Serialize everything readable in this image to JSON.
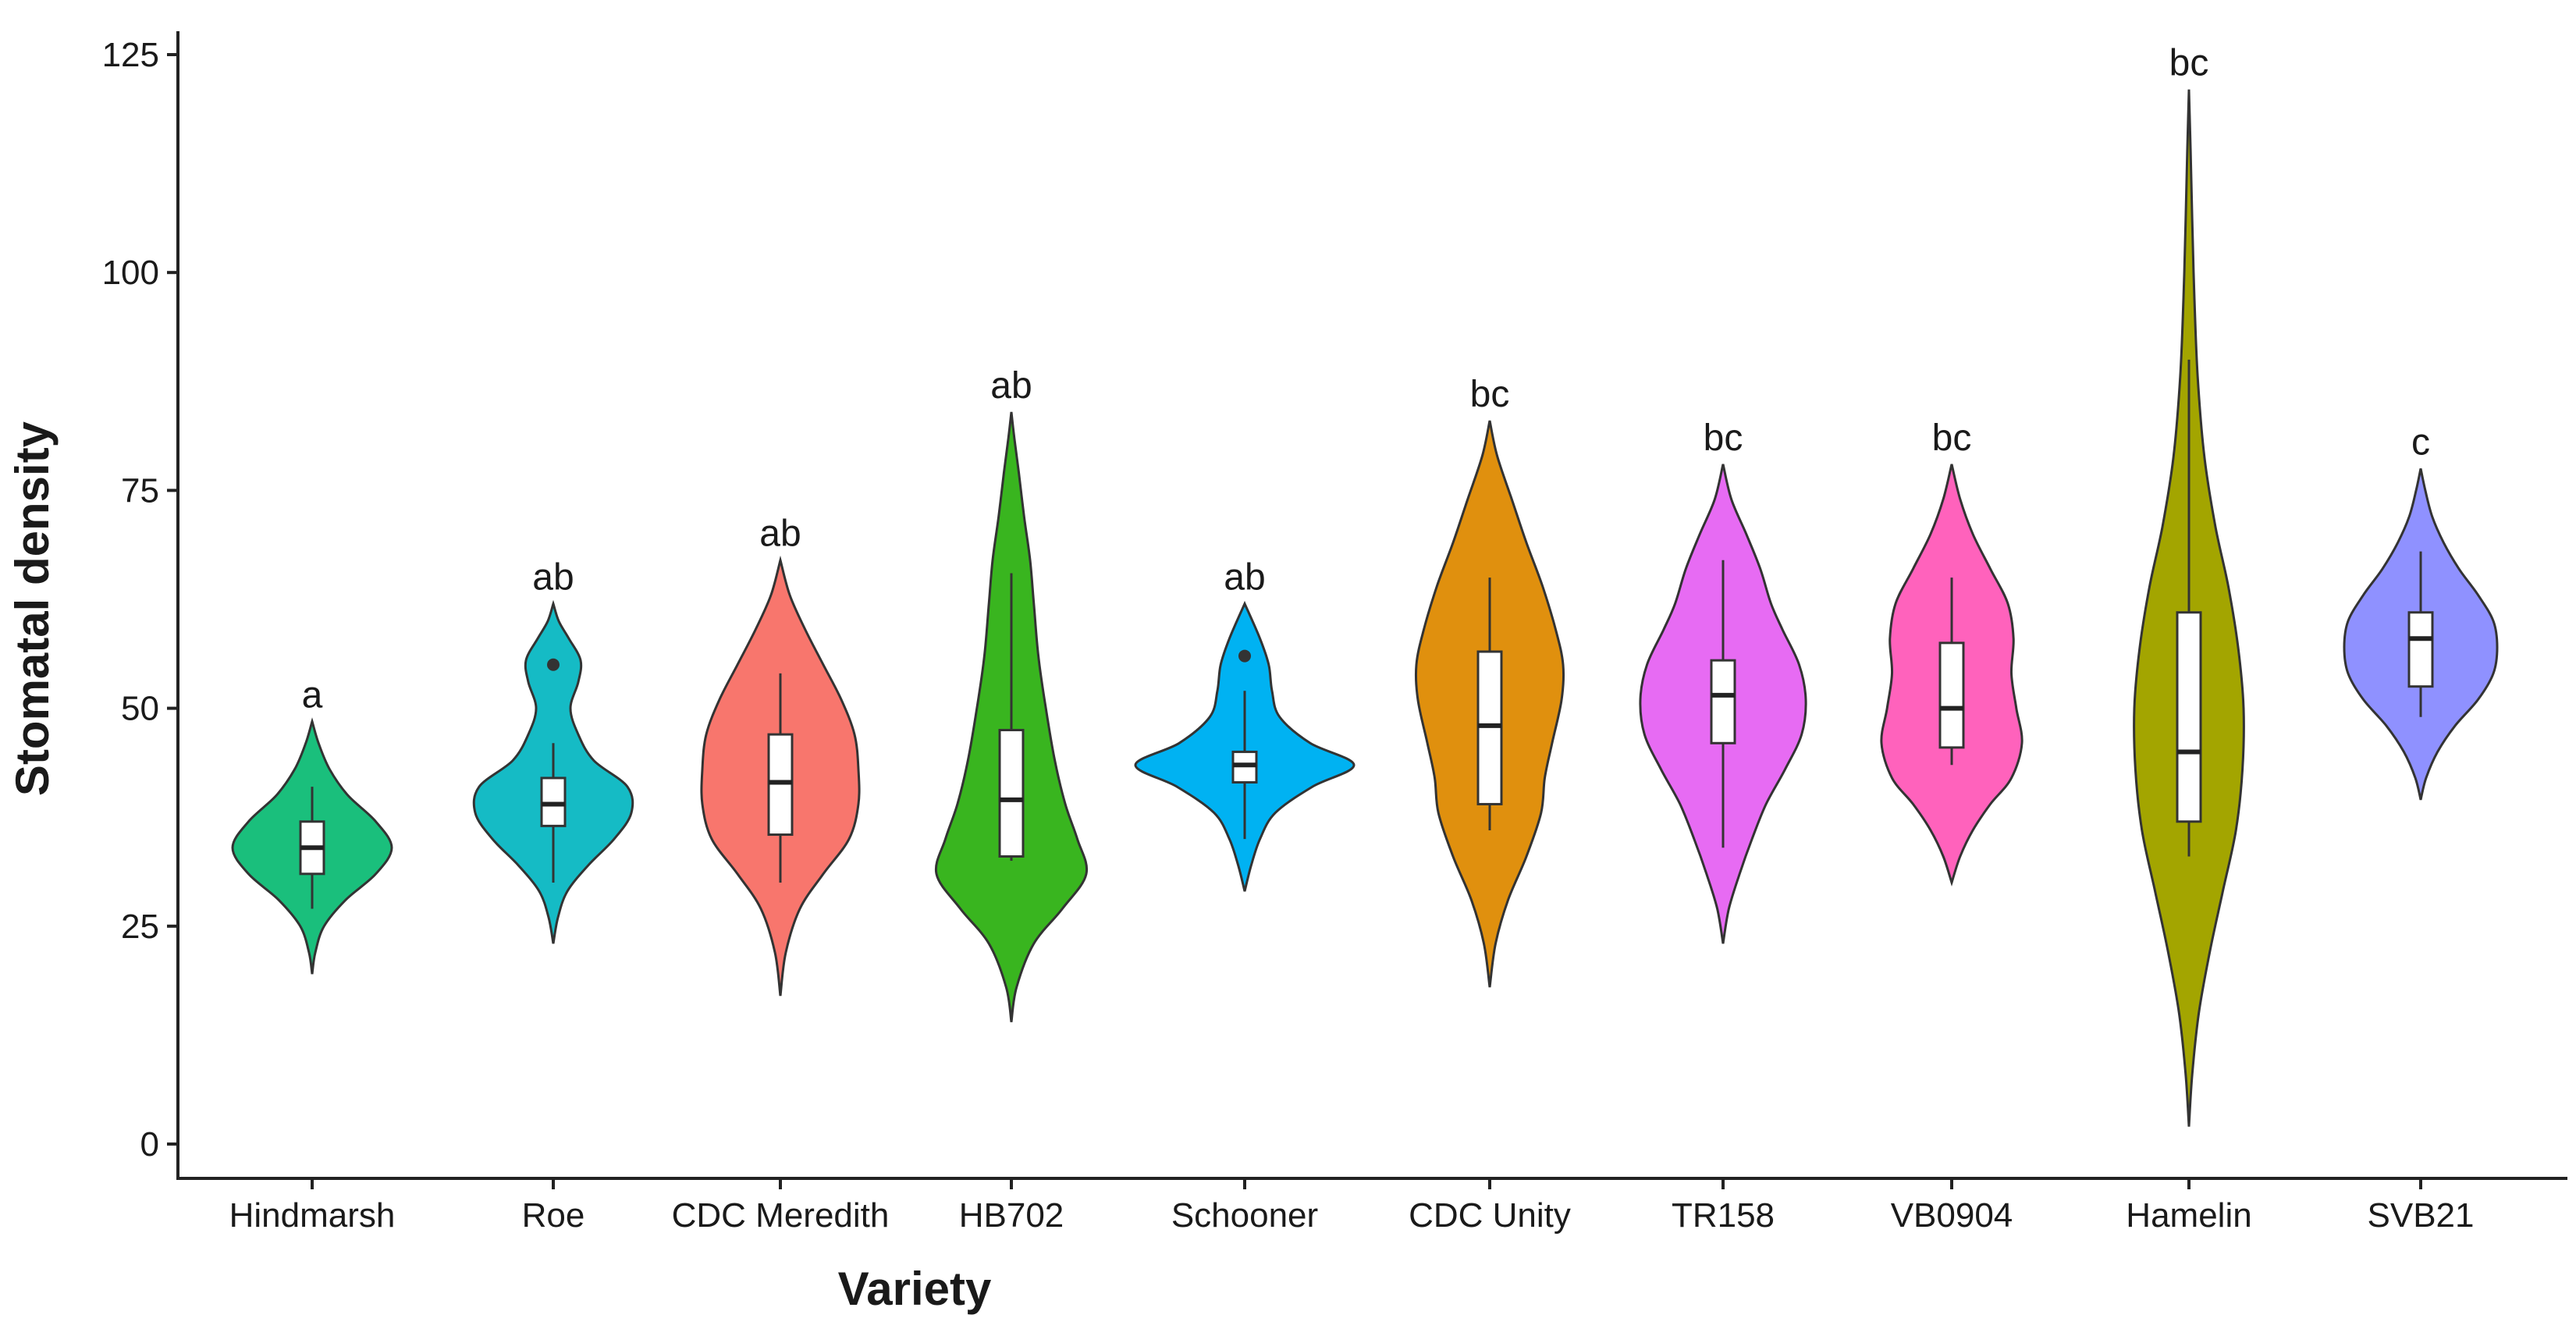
{
  "chart_data": {
    "type": "violin",
    "xlabel": "Variety",
    "ylabel": "Stomatal density",
    "ylim": [
      -3,
      126
    ],
    "yticks": [
      0,
      25,
      50,
      75,
      100,
      125
    ],
    "grid": false,
    "legend": "none",
    "categories": [
      "Hindmarsh",
      "Roe",
      "CDC Meredith",
      "HB702",
      "Schooner",
      "CDC Unity",
      "TR158",
      "VB0904",
      "Hamelin",
      "SVB21"
    ],
    "series": [
      {
        "name": "Hindmarsh",
        "color": "#1ABF7C",
        "significance": "a",
        "box": {
          "min": 27,
          "q1": 31,
          "median": 34,
          "q3": 37,
          "max": 41
        },
        "outliers": [],
        "density": [
          [
            19.5,
            0
          ],
          [
            22,
            0.04
          ],
          [
            25,
            0.15
          ],
          [
            28,
            0.42
          ],
          [
            31,
            0.8
          ],
          [
            34,
            1
          ],
          [
            37,
            0.8
          ],
          [
            40,
            0.45
          ],
          [
            43,
            0.22
          ],
          [
            46,
            0.08
          ],
          [
            48.5,
            0
          ]
        ]
      },
      {
        "name": "Roe",
        "color": "#15BBC5",
        "significance": "ab",
        "box": {
          "min": 30,
          "q1": 36.5,
          "median": 39,
          "q3": 42,
          "max": 46
        },
        "outliers": [
          55
        ],
        "density": [
          [
            23,
            0
          ],
          [
            26,
            0.06
          ],
          [
            29,
            0.18
          ],
          [
            32,
            0.45
          ],
          [
            35,
            0.78
          ],
          [
            38,
            1
          ],
          [
            41,
            0.95
          ],
          [
            44,
            0.52
          ],
          [
            47,
            0.32
          ],
          [
            50,
            0.22
          ],
          [
            53,
            0.32
          ],
          [
            55.5,
            0.35
          ],
          [
            58,
            0.2
          ],
          [
            60,
            0.07
          ],
          [
            62,
            0
          ]
        ]
      },
      {
        "name": "CDC Meredith",
        "color": "#F8766D",
        "significance": "ab",
        "box": {
          "min": 30,
          "q1": 35.5,
          "median": 41.5,
          "q3": 47,
          "max": 54
        },
        "outliers": [],
        "density": [
          [
            17,
            0
          ],
          [
            22,
            0.07
          ],
          [
            27,
            0.25
          ],
          [
            31,
            0.55
          ],
          [
            35,
            0.88
          ],
          [
            39,
            1
          ],
          [
            43,
            1
          ],
          [
            47,
            0.95
          ],
          [
            51,
            0.78
          ],
          [
            55,
            0.55
          ],
          [
            59,
            0.32
          ],
          [
            63,
            0.12
          ],
          [
            67,
            0
          ]
        ]
      },
      {
        "name": "HB702",
        "color": "#39B51F",
        "significance": "ab",
        "box": {
          "min": 32.5,
          "q1": 33,
          "median": 39.5,
          "q3": 47.5,
          "max": 65.5
        },
        "outliers": [],
        "density": [
          [
            14,
            0
          ],
          [
            18,
            0.07
          ],
          [
            23,
            0.3
          ],
          [
            27,
            0.68
          ],
          [
            31,
            1
          ],
          [
            35,
            0.88
          ],
          [
            39,
            0.72
          ],
          [
            44,
            0.58
          ],
          [
            50,
            0.46
          ],
          [
            56,
            0.36
          ],
          [
            62,
            0.3
          ],
          [
            67,
            0.25
          ],
          [
            72,
            0.17
          ],
          [
            77,
            0.1
          ],
          [
            81,
            0.04
          ],
          [
            84,
            0
          ]
        ]
      },
      {
        "name": "Schooner",
        "color": "#00B2F2",
        "significance": "ab",
        "box": {
          "min": 35,
          "q1": 41.5,
          "median": 43.5,
          "q3": 45,
          "max": 52
        },
        "outliers": [
          56
        ],
        "density": [
          [
            29,
            0
          ],
          [
            32,
            0.06
          ],
          [
            35,
            0.14
          ],
          [
            38,
            0.28
          ],
          [
            41,
            0.62
          ],
          [
            43.5,
            1
          ],
          [
            46,
            0.6
          ],
          [
            49,
            0.32
          ],
          [
            52,
            0.25
          ],
          [
            55,
            0.22
          ],
          [
            58,
            0.14
          ],
          [
            62,
            0
          ]
        ]
      },
      {
        "name": "CDC Unity",
        "color": "#E0900E",
        "significance": "bc",
        "box": {
          "min": 36,
          "q1": 39,
          "median": 48,
          "q3": 56.5,
          "max": 65
        },
        "outliers": [],
        "density": [
          [
            18,
            0
          ],
          [
            23,
            0.08
          ],
          [
            28,
            0.25
          ],
          [
            33,
            0.5
          ],
          [
            38,
            0.7
          ],
          [
            42,
            0.75
          ],
          [
            46,
            0.85
          ],
          [
            51,
            0.98
          ],
          [
            55,
            1
          ],
          [
            59,
            0.9
          ],
          [
            64,
            0.72
          ],
          [
            69,
            0.5
          ],
          [
            74,
            0.3
          ],
          [
            79,
            0.1
          ],
          [
            83,
            0
          ]
        ]
      },
      {
        "name": "TR158",
        "color": "#E76BF3",
        "significance": "bc",
        "box": {
          "min": 34,
          "q1": 46,
          "median": 51.5,
          "q3": 55.5,
          "max": 67
        },
        "outliers": [],
        "density": [
          [
            23,
            0
          ],
          [
            27,
            0.07
          ],
          [
            31,
            0.2
          ],
          [
            35,
            0.35
          ],
          [
            39,
            0.52
          ],
          [
            43,
            0.75
          ],
          [
            47,
            0.95
          ],
          [
            51,
            1
          ],
          [
            55,
            0.92
          ],
          [
            59,
            0.72
          ],
          [
            62,
            0.58
          ],
          [
            66,
            0.45
          ],
          [
            70,
            0.28
          ],
          [
            74,
            0.1
          ],
          [
            78,
            0
          ]
        ]
      },
      {
        "name": "VB0904",
        "color": "#FF62BC",
        "significance": "bc",
        "box": {
          "min": 43.5,
          "q1": 45.5,
          "median": 50,
          "q3": 57.5,
          "max": 65
        },
        "outliers": [],
        "density": [
          [
            30,
            0
          ],
          [
            33,
            0.12
          ],
          [
            36,
            0.3
          ],
          [
            39,
            0.55
          ],
          [
            42,
            0.85
          ],
          [
            46,
            1
          ],
          [
            50,
            0.92
          ],
          [
            54,
            0.85
          ],
          [
            58,
            0.88
          ],
          [
            62,
            0.8
          ],
          [
            66,
            0.55
          ],
          [
            70,
            0.3
          ],
          [
            74,
            0.12
          ],
          [
            78,
            0
          ]
        ]
      },
      {
        "name": "Hamelin",
        "color": "#A3A500",
        "significance": "bc",
        "box": {
          "min": 33,
          "q1": 37,
          "median": 45,
          "q3": 61,
          "max": 90
        },
        "outliers": [],
        "density": [
          [
            2,
            0
          ],
          [
            8,
            0.06
          ],
          [
            15,
            0.18
          ],
          [
            22,
            0.38
          ],
          [
            29,
            0.62
          ],
          [
            36,
            0.86
          ],
          [
            43,
            0.98
          ],
          [
            50,
            1
          ],
          [
            57,
            0.9
          ],
          [
            64,
            0.72
          ],
          [
            71,
            0.48
          ],
          [
            79,
            0.28
          ],
          [
            88,
            0.16
          ],
          [
            97,
            0.1
          ],
          [
            106,
            0.06
          ],
          [
            114,
            0.03
          ],
          [
            121,
            0
          ]
        ]
      },
      {
        "name": "SVB21",
        "color": "#8F91FF",
        "significance": "c",
        "box": {
          "min": 49,
          "q1": 52.5,
          "median": 58,
          "q3": 61,
          "max": 68
        },
        "outliers": [],
        "density": [
          [
            39.5,
            0
          ],
          [
            42,
            0.07
          ],
          [
            45,
            0.22
          ],
          [
            48,
            0.45
          ],
          [
            51,
            0.75
          ],
          [
            54,
            0.95
          ],
          [
            57,
            1
          ],
          [
            60,
            0.95
          ],
          [
            63,
            0.75
          ],
          [
            66,
            0.5
          ],
          [
            69,
            0.3
          ],
          [
            72,
            0.15
          ],
          [
            75,
            0.06
          ],
          [
            77.5,
            0
          ]
        ]
      }
    ]
  }
}
